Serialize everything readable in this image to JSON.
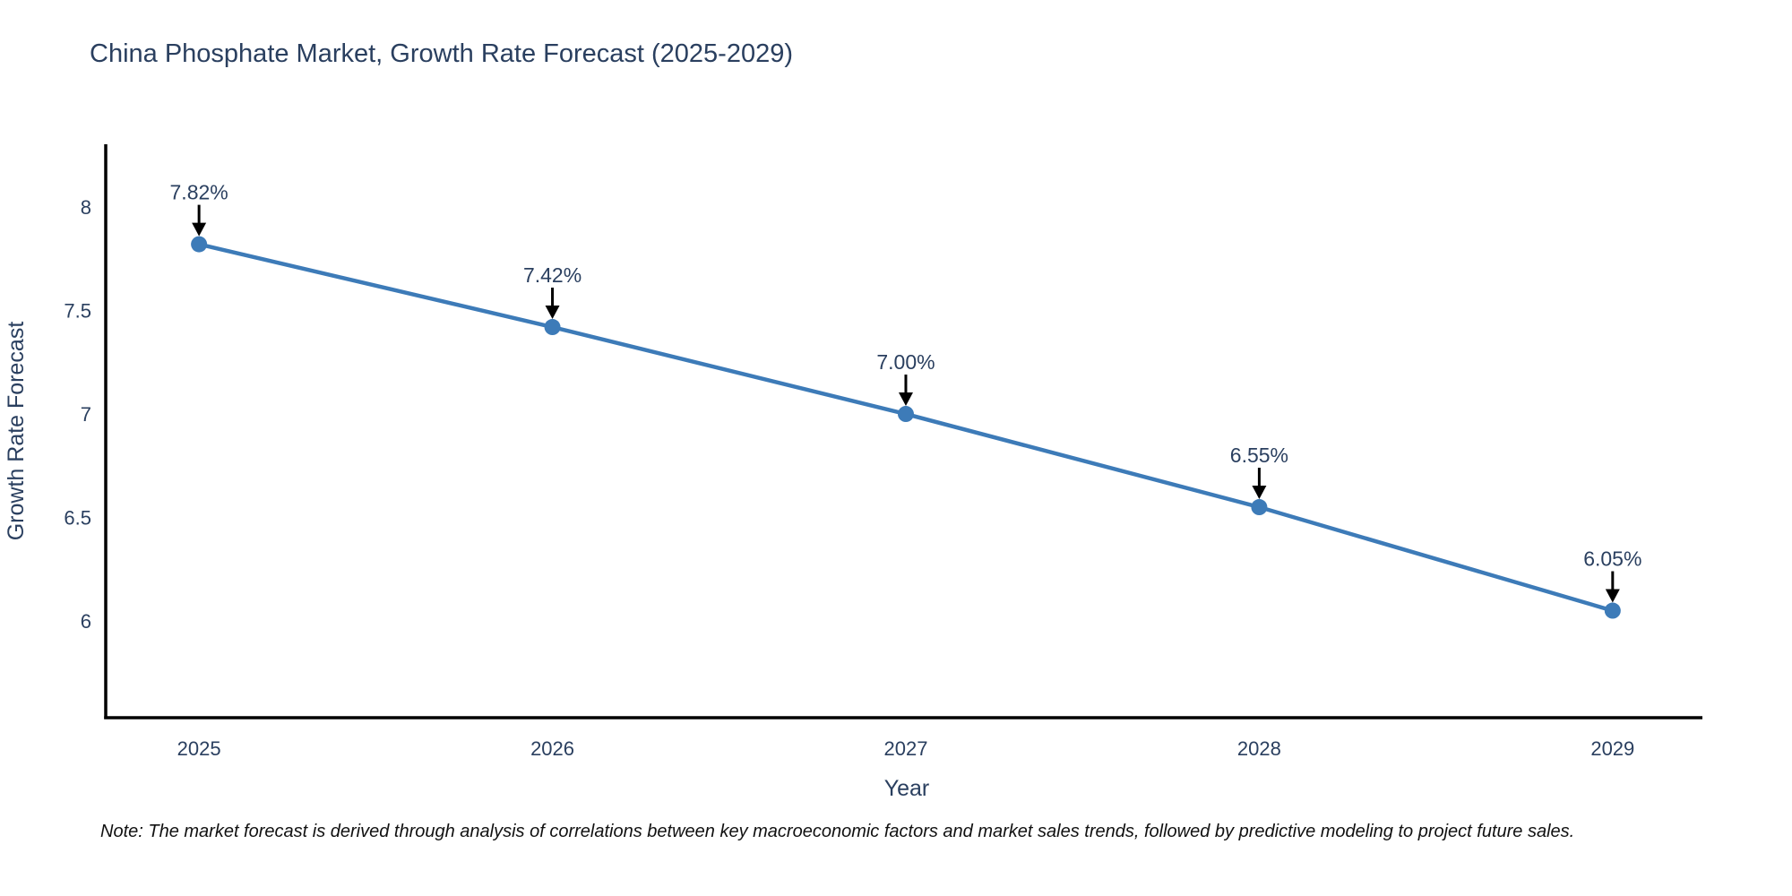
{
  "title": "China Phosphate Market, Growth Rate Forecast (2025-2029)",
  "note": "Note: The market forecast is derived through analysis of correlations between key macroeconomic factors and market sales trends, followed by predictive modeling to project future sales.",
  "chart_data": {
    "type": "line",
    "title": "China Phosphate Market, Growth Rate Forecast (2025-2029)",
    "xlabel": "Year",
    "ylabel": "Growth Rate Forecast",
    "x": [
      2025,
      2026,
      2027,
      2028,
      2029
    ],
    "series": [
      {
        "name": "Growth Rate Forecast",
        "values": [
          7.82,
          7.42,
          7.0,
          6.55,
          6.05
        ],
        "point_labels": [
          "7.82%",
          "7.42%",
          "7.00%",
          "6.55%",
          "6.05%"
        ]
      }
    ],
    "x_tick_labels": [
      "2025",
      "2026",
      "2027",
      "2028",
      "2029"
    ],
    "y_tick_values": [
      6,
      6.5,
      7,
      7.5,
      8
    ],
    "y_tick_labels": [
      "6",
      "6.5",
      "7",
      "7.5",
      "8"
    ],
    "xlim": [
      2024.736,
      2029.254
    ],
    "ylim": [
      5.533,
      8.303
    ],
    "grid": false,
    "legend_position": "none",
    "annotations_have_arrows": true
  },
  "colors": {
    "line": "#3d7bb8",
    "marker": "#3d7bb8",
    "axis": "#000000",
    "arrow": "#000000",
    "text": "#2a3f5f",
    "note_text": "#111111",
    "background": "#ffffff"
  }
}
